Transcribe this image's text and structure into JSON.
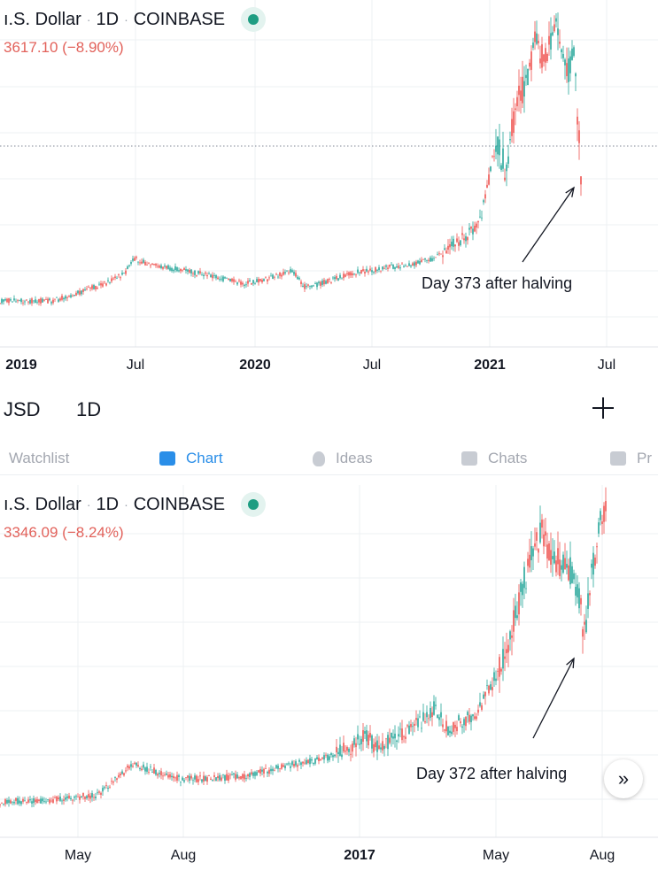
{
  "top_chart": {
    "title_parts": [
      "ı.S. Dollar",
      "1D",
      "COINBASE"
    ],
    "change": "3617.10 (−8.90%)",
    "x_labels": [
      "2019",
      "Jul",
      "2020",
      "Jul",
      "2021",
      "Jul"
    ],
    "annotation": "Day 373 after halving"
  },
  "toolbar": {
    "symbol": "JSD",
    "interval": "1D"
  },
  "tabs": [
    {
      "label": "Watchlist",
      "icon": "watchlist-icon"
    },
    {
      "label": "Chart",
      "icon": "chart-icon"
    },
    {
      "label": "Ideas",
      "icon": "lightbulb-icon"
    },
    {
      "label": "Chats",
      "icon": "chat-icon"
    },
    {
      "label": "Pr",
      "icon": "smiley-icon"
    }
  ],
  "bottom_chart": {
    "title_parts": [
      "ı.S. Dollar",
      "1D",
      "COINBASE"
    ],
    "change": "3346.09 (−8.24%)",
    "x_labels": [
      "May",
      "Aug",
      "2017",
      "May",
      "Aug"
    ],
    "annotation": "Day 372 after halving"
  },
  "more_button": "»",
  "colors": {
    "up": "#26a69a",
    "down": "#ef5350",
    "accent": "#2a8ee8",
    "dot": "#1e9d82",
    "change_text": "#e2625b"
  }
}
